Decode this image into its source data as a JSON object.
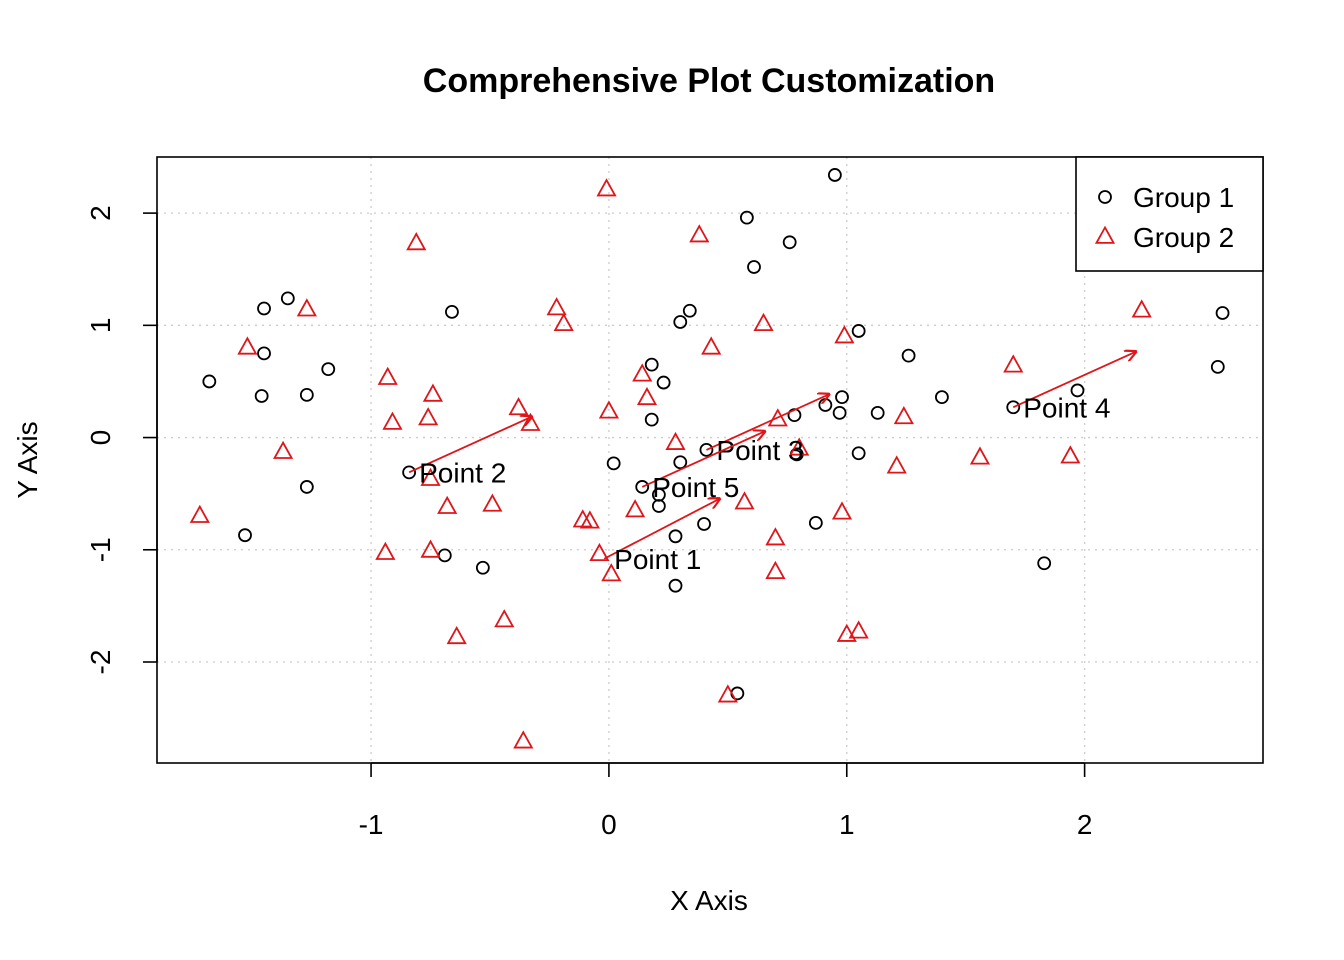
{
  "chart_data": {
    "type": "scatter",
    "title": "Comprehensive Plot Customization",
    "xlabel": "X Axis",
    "ylabel": "Y Axis",
    "xlim": [
      -1.9,
      2.75
    ],
    "ylim": [
      -2.9,
      2.5
    ],
    "xticks": [
      -1,
      0,
      1,
      2
    ],
    "yticks": [
      -2,
      -1,
      0,
      1,
      2
    ],
    "xtick_labels": [
      "-1",
      "0",
      "1",
      "2"
    ],
    "ytick_labels": [
      "-2",
      "-1",
      "0",
      "1",
      "2"
    ],
    "grid": true,
    "grid_color": "#cccccc",
    "legend_position": "top-right",
    "series": [
      {
        "name": "Group 1",
        "marker": "circle",
        "color": "#000000",
        "points": [
          [
            -1.68,
            0.5
          ],
          [
            -1.53,
            -0.87
          ],
          [
            -1.45,
            1.15
          ],
          [
            -1.45,
            0.75
          ],
          [
            -1.46,
            0.37
          ],
          [
            -1.35,
            1.24
          ],
          [
            -1.27,
            0.38
          ],
          [
            -1.27,
            -0.44
          ],
          [
            -1.18,
            0.61
          ],
          [
            -0.84,
            -0.31
          ],
          [
            -0.69,
            -1.05
          ],
          [
            -0.66,
            1.12
          ],
          [
            -0.53,
            -1.16
          ],
          [
            0.02,
            -0.23
          ],
          [
            0.14,
            -0.44
          ],
          [
            0.18,
            0.65
          ],
          [
            0.18,
            0.16
          ],
          [
            0.21,
            -0.51
          ],
          [
            0.21,
            -0.61
          ],
          [
            0.23,
            0.49
          ],
          [
            0.28,
            -0.88
          ],
          [
            0.28,
            -1.32
          ],
          [
            0.3,
            1.03
          ],
          [
            0.3,
            -0.22
          ],
          [
            0.34,
            1.13
          ],
          [
            0.4,
            -0.77
          ],
          [
            0.41,
            -0.11
          ],
          [
            0.54,
            -2.28
          ],
          [
            0.58,
            1.96
          ],
          [
            0.61,
            1.52
          ],
          [
            0.76,
            1.74
          ],
          [
            0.78,
            0.2
          ],
          [
            0.79,
            -0.15
          ],
          [
            0.87,
            -0.76
          ],
          [
            0.91,
            0.29
          ],
          [
            0.95,
            2.34
          ],
          [
            0.97,
            0.22
          ],
          [
            0.98,
            0.36
          ],
          [
            1.05,
            0.95
          ],
          [
            1.05,
            -0.14
          ],
          [
            1.13,
            0.22
          ],
          [
            1.26,
            0.73
          ],
          [
            1.4,
            0.36
          ],
          [
            1.7,
            0.27
          ],
          [
            1.83,
            -1.12
          ],
          [
            1.97,
            0.42
          ],
          [
            2.56,
            0.63
          ],
          [
            2.58,
            1.11
          ]
        ]
      },
      {
        "name": "Group 2",
        "marker": "triangle",
        "color": "#e0151a",
        "points": [
          [
            -1.72,
            -0.7
          ],
          [
            -1.52,
            0.8
          ],
          [
            -1.37,
            -0.13
          ],
          [
            -1.27,
            1.14
          ],
          [
            -0.94,
            -1.03
          ],
          [
            -0.93,
            0.53
          ],
          [
            -0.91,
            0.13
          ],
          [
            -0.81,
            1.73
          ],
          [
            -0.76,
            0.17
          ],
          [
            -0.75,
            -0.37
          ],
          [
            -0.75,
            -1.01
          ],
          [
            -0.74,
            0.38
          ],
          [
            -0.68,
            -0.62
          ],
          [
            -0.64,
            -1.78
          ],
          [
            -0.49,
            -0.6
          ],
          [
            -0.44,
            -1.63
          ],
          [
            -0.38,
            0.26
          ],
          [
            -0.36,
            -2.71
          ],
          [
            -0.33,
            0.12
          ],
          [
            -0.22,
            1.15
          ],
          [
            -0.19,
            1.01
          ],
          [
            -0.11,
            -0.74
          ],
          [
            -0.08,
            -0.75
          ],
          [
            -0.04,
            -1.04
          ],
          [
            -0.01,
            2.21
          ],
          [
            0.0,
            0.23
          ],
          [
            0.01,
            -1.22
          ],
          [
            0.11,
            -0.65
          ],
          [
            0.14,
            0.56
          ],
          [
            0.16,
            0.35
          ],
          [
            0.28,
            -0.05
          ],
          [
            0.38,
            1.8
          ],
          [
            0.43,
            0.8
          ],
          [
            0.5,
            -2.3
          ],
          [
            0.57,
            -0.58
          ],
          [
            0.65,
            1.01
          ],
          [
            0.7,
            -0.9
          ],
          [
            0.7,
            -1.2
          ],
          [
            0.71,
            0.16
          ],
          [
            0.8,
            -0.1
          ],
          [
            0.98,
            -0.67
          ],
          [
            0.99,
            0.9
          ],
          [
            1.0,
            -1.76
          ],
          [
            1.05,
            -1.73
          ],
          [
            1.21,
            -0.26
          ],
          [
            1.24,
            0.18
          ],
          [
            1.56,
            -0.18
          ],
          [
            1.7,
            0.64
          ],
          [
            1.94,
            -0.17
          ],
          [
            2.24,
            1.13
          ]
        ]
      }
    ],
    "annotations": [
      {
        "text": "Point 1",
        "point": [
          -0.02,
          -1.08
        ],
        "arrow_to": [
          0.47,
          -0.54
        ]
      },
      {
        "text": "Point 2",
        "point": [
          -0.84,
          -0.31
        ],
        "arrow_to": [
          -0.32,
          0.19
        ]
      },
      {
        "text": "Point 3",
        "point": [
          0.41,
          -0.11
        ],
        "arrow_to": [
          0.93,
          0.39
        ]
      },
      {
        "text": "Point 4",
        "point": [
          1.7,
          0.27
        ],
        "arrow_to": [
          2.22,
          0.77
        ]
      },
      {
        "text": "Point 5",
        "point": [
          0.14,
          -0.44
        ],
        "arrow_to": [
          0.66,
          0.06
        ]
      }
    ],
    "arrow_color": "#e0151a"
  }
}
